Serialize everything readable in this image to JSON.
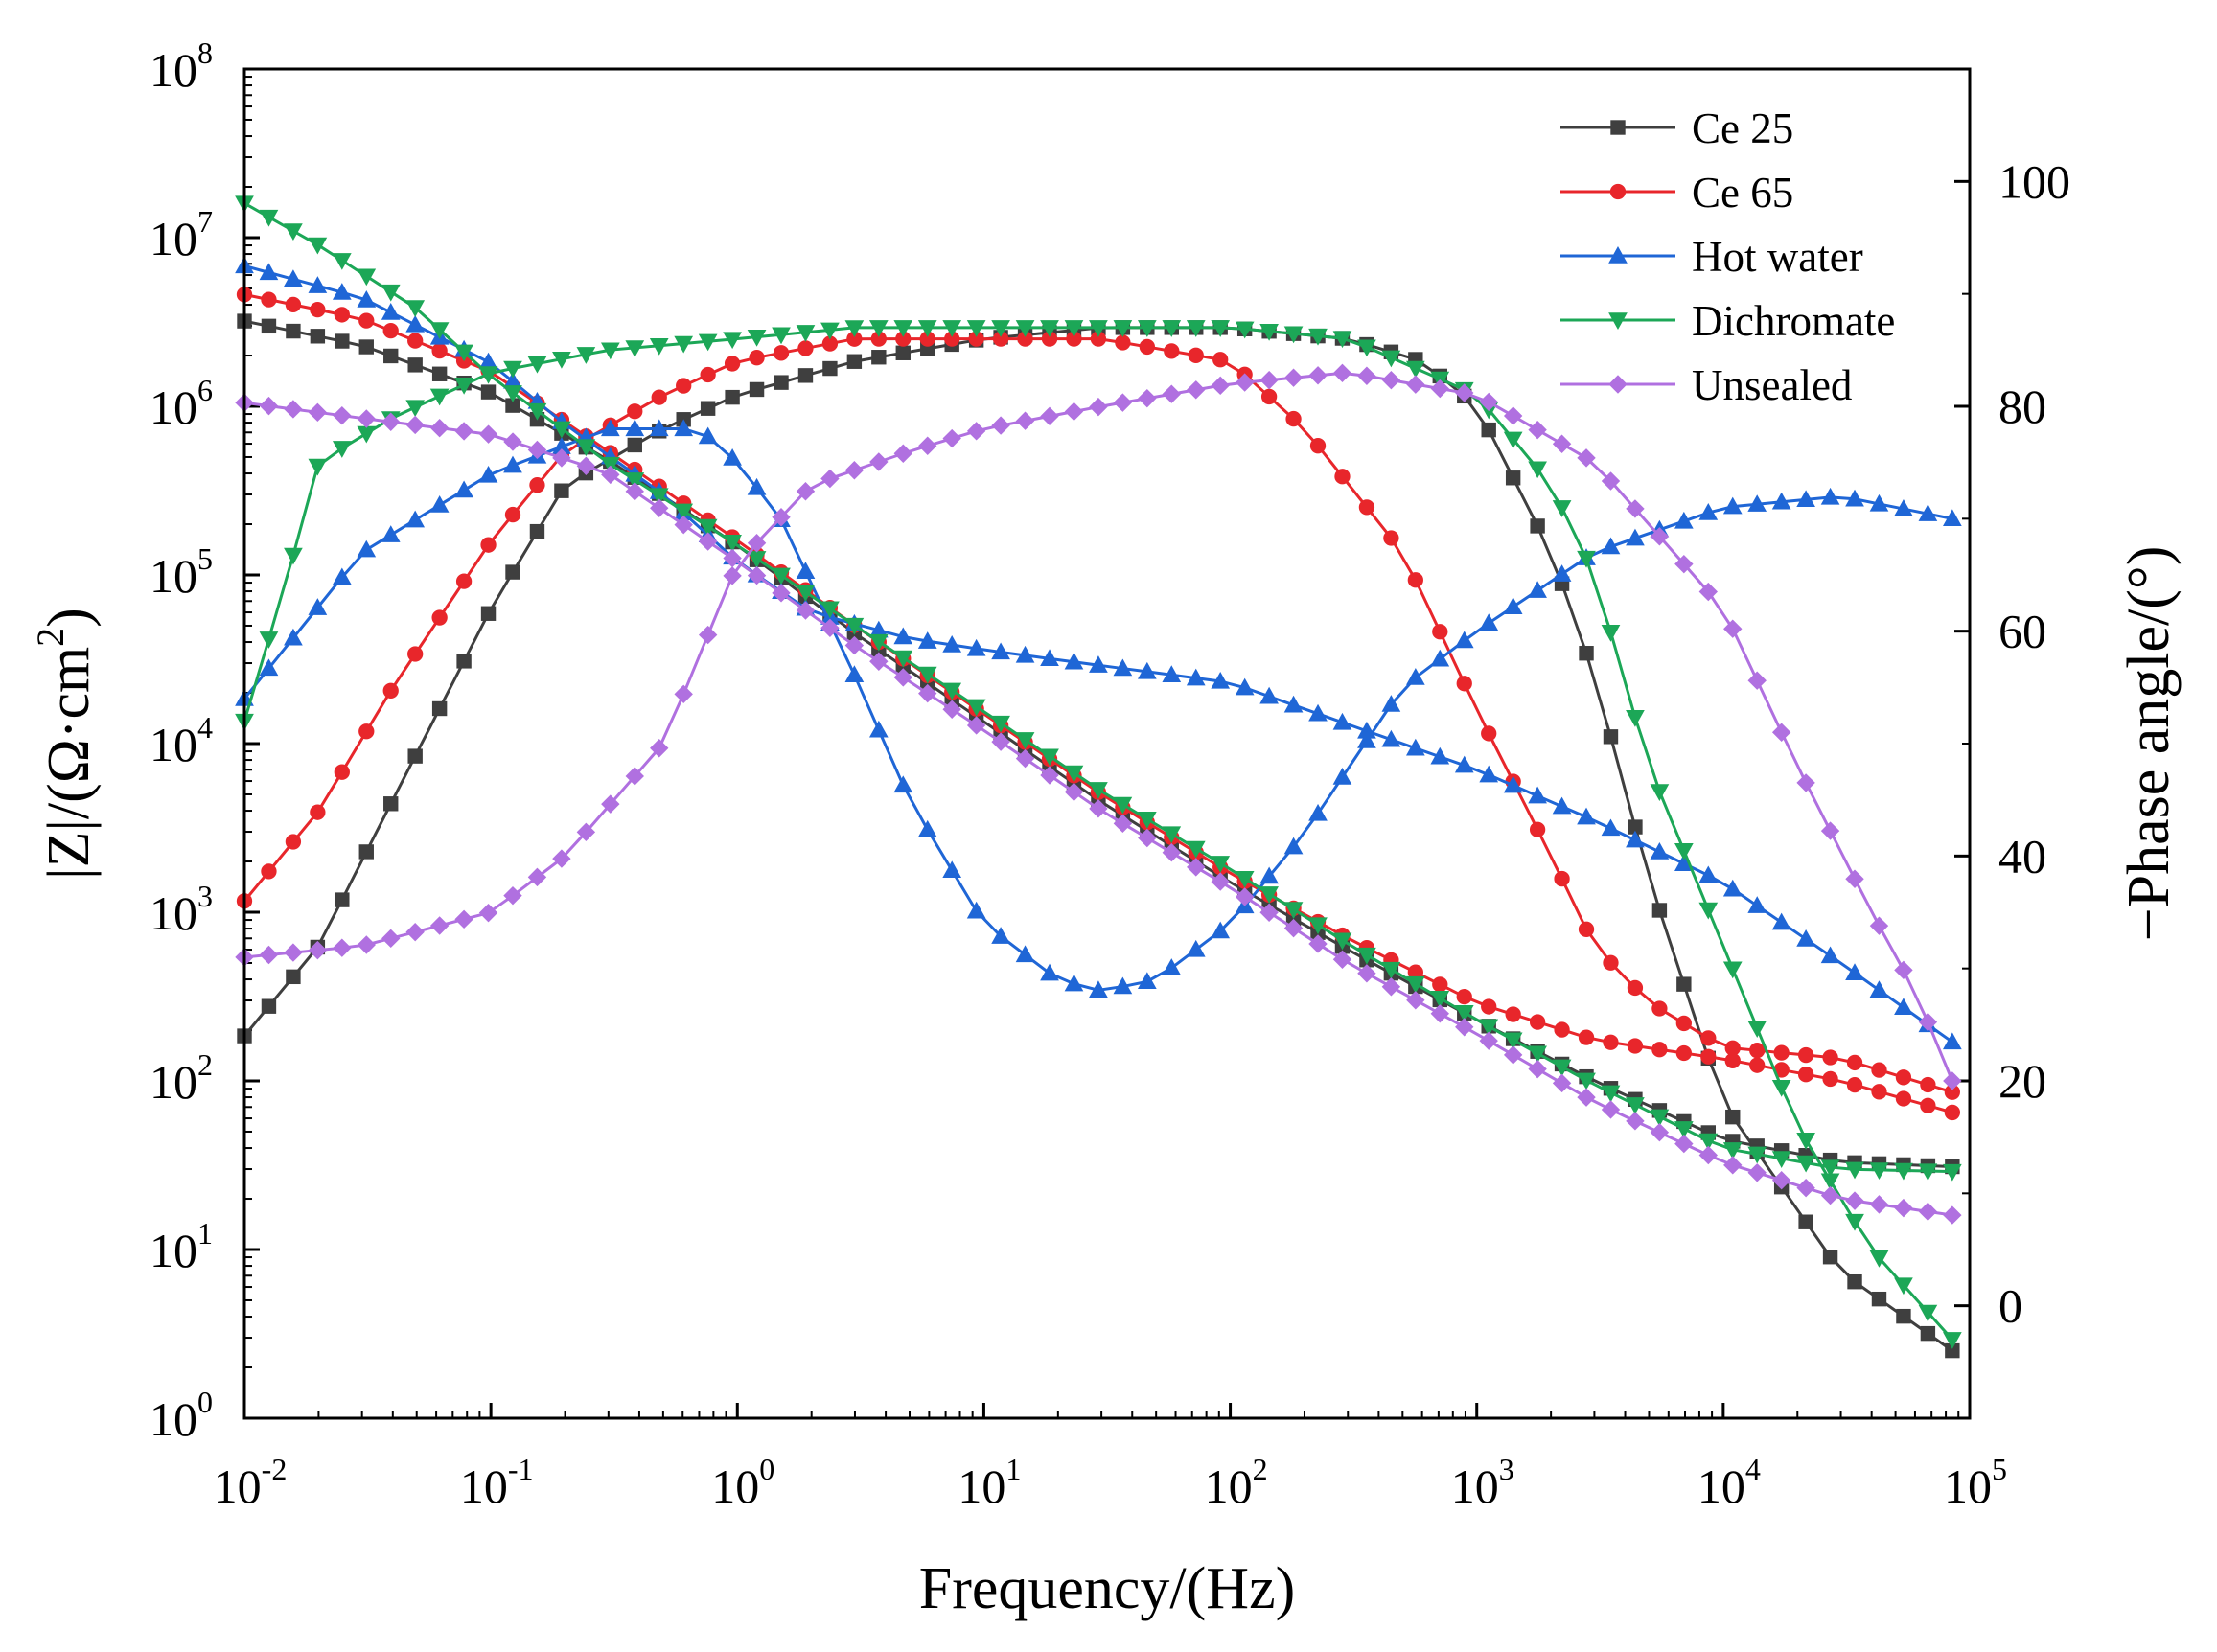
{
  "chart_data": {
    "type": "line",
    "xlabel": "Frequency/(Hz)",
    "ylabel_left": {
      "base": "|Z|/(Ω·cm",
      "sup": "2",
      "tail": ")"
    },
    "ylabel_right": "−Phase angle/(°)",
    "x_scale": "log",
    "xlim": [
      0.01,
      100000
    ],
    "x_ticks": [
      {
        "base": "10",
        "exp": "-2"
      },
      {
        "base": "10",
        "exp": "-1"
      },
      {
        "base": "10",
        "exp": "0"
      },
      {
        "base": "10",
        "exp": "1"
      },
      {
        "base": "10",
        "exp": "2"
      },
      {
        "base": "10",
        "exp": "3"
      },
      {
        "base": "10",
        "exp": "4"
      },
      {
        "base": "10",
        "exp": "5"
      }
    ],
    "y_left_scale": "log",
    "y_left_lim": [
      1,
      100000000
    ],
    "y_left_ticks": [
      {
        "base": "10",
        "exp": "0"
      },
      {
        "base": "10",
        "exp": "1"
      },
      {
        "base": "10",
        "exp": "2"
      },
      {
        "base": "10",
        "exp": "3"
      },
      {
        "base": "10",
        "exp": "4"
      },
      {
        "base": "10",
        "exp": "5"
      },
      {
        "base": "10",
        "exp": "6"
      },
      {
        "base": "10",
        "exp": "7"
      },
      {
        "base": "10",
        "exp": "8"
      }
    ],
    "y_right_lim": [
      -10,
      110
    ],
    "y_right_ticks": [
      "0",
      "20",
      "40",
      "60",
      "80",
      "100"
    ],
    "legend_position": "top-right",
    "series": [
      {
        "name": "Ce 25",
        "color": "#3f3f3f",
        "marker": "square",
        "impedance": [
          [
            0.01,
            3200000.0
          ],
          [
            0.03,
            2300000.0
          ],
          [
            0.1,
            1200000.0
          ],
          [
            0.3,
            480000.0
          ],
          [
            1,
            150000.0
          ],
          [
            3,
            45000.0
          ],
          [
            10,
            13500.0
          ],
          [
            30,
            4500.0
          ],
          [
            100,
            1500.0
          ],
          [
            300,
            600
          ],
          [
            1000,
            230
          ],
          [
            3000,
            100
          ],
          [
            10000,
            45
          ],
          [
            30000,
            33
          ],
          [
            85000,
            31
          ]
        ],
        "phase": [
          [
            0.01,
            24
          ],
          [
            0.02,
            32
          ],
          [
            0.04,
            45
          ],
          [
            0.1,
            62
          ],
          [
            0.2,
            73
          ],
          [
            0.5,
            78
          ],
          [
            1,
            81
          ],
          [
            3,
            84
          ],
          [
            10,
            86
          ],
          [
            30,
            87
          ],
          [
            100,
            87
          ],
          [
            300,
            86
          ],
          [
            600,
            84
          ],
          [
            1000,
            80
          ],
          [
            2000,
            67
          ],
          [
            3000,
            56
          ],
          [
            5000,
            38
          ],
          [
            10000,
            18
          ],
          [
            30000,
            3
          ],
          [
            85000,
            -4
          ]
        ]
      },
      {
        "name": "Ce 65",
        "color": "#e8262b",
        "marker": "circle",
        "impedance": [
          [
            0.01,
            4600000.0
          ],
          [
            0.03,
            3300000.0
          ],
          [
            0.1,
            1600000.0
          ],
          [
            0.3,
            540000.0
          ],
          [
            1,
            160000.0
          ],
          [
            3,
            50000.0
          ],
          [
            10,
            15000.0
          ],
          [
            30,
            5000.0
          ],
          [
            100,
            1700.0
          ],
          [
            300,
            700
          ],
          [
            1000,
            290
          ],
          [
            3000,
            175
          ],
          [
            10000,
            135
          ],
          [
            30000,
            100
          ],
          [
            85000,
            65
          ]
        ],
        "phase": [
          [
            0.01,
            36
          ],
          [
            0.02,
            44
          ],
          [
            0.04,
            55
          ],
          [
            0.1,
            68
          ],
          [
            0.2,
            76
          ],
          [
            0.5,
            81
          ],
          [
            1,
            84
          ],
          [
            3,
            86
          ],
          [
            10,
            86
          ],
          [
            30,
            86
          ],
          [
            100,
            84
          ],
          [
            200,
            78
          ],
          [
            500,
            67
          ],
          [
            1000,
            53
          ],
          [
            2000,
            40
          ],
          [
            3000,
            32
          ],
          [
            5000,
            27
          ],
          [
            10000,
            23
          ],
          [
            30000,
            22
          ],
          [
            85000,
            19
          ]
        ]
      },
      {
        "name": "Hot water",
        "color": "#1f66d6",
        "marker": "triangle-up",
        "impedance": [
          [
            0.01,
            6800000.0
          ],
          [
            0.03,
            4400000.0
          ],
          [
            0.1,
            1800000.0
          ],
          [
            0.2,
            780000.0
          ],
          [
            0.5,
            300000.0
          ],
          [
            1,
            120000.0
          ],
          [
            2,
            60000.0
          ],
          [
            5,
            42000.0
          ],
          [
            10,
            36000.0
          ],
          [
            30,
            29000.0
          ],
          [
            100,
            23000.0
          ],
          [
            300,
            13000.0
          ],
          [
            1000,
            7000.0
          ],
          [
            3000,
            3500.0
          ],
          [
            10000,
            1500.0
          ],
          [
            30000,
            500
          ],
          [
            85000,
            170
          ]
        ],
        "phase": [
          [
            0.01,
            54
          ],
          [
            0.03,
            67
          ],
          [
            0.1,
            74
          ],
          [
            0.3,
            78
          ],
          [
            0.7,
            78
          ],
          [
            1,
            75
          ],
          [
            1.5,
            70
          ],
          [
            3,
            56
          ],
          [
            5,
            45
          ],
          [
            10,
            34
          ],
          [
            20,
            29
          ],
          [
            30,
            28
          ],
          [
            50,
            29
          ],
          [
            100,
            34
          ],
          [
            200,
            42
          ],
          [
            500,
            55
          ],
          [
            1000,
            60
          ],
          [
            3000,
            67
          ],
          [
            10000,
            71
          ],
          [
            30000,
            72
          ],
          [
            85000,
            70
          ]
        ]
      },
      {
        "name": "Dichromate",
        "color": "#1ca757",
        "marker": "triangle-down",
        "impedance": [
          [
            0.01,
            16000000.0
          ],
          [
            0.02,
            9000000.0
          ],
          [
            0.05,
            3800000.0
          ],
          [
            0.1,
            1500000.0
          ],
          [
            0.3,
            460000.0
          ],
          [
            1,
            150000.0
          ],
          [
            3,
            50000.0
          ],
          [
            10,
            15500.0
          ],
          [
            30,
            5200.0
          ],
          [
            100,
            1800.0
          ],
          [
            300,
            650
          ],
          [
            1000,
            230
          ],
          [
            3000,
            95
          ],
          [
            10000,
            40
          ],
          [
            30000,
            30
          ],
          [
            85000,
            29
          ]
        ],
        "phase": [
          [
            0.01,
            52
          ],
          [
            0.015,
            65
          ],
          [
            0.02,
            75
          ],
          [
            0.04,
            79
          ],
          [
            0.1,
            83
          ],
          [
            0.3,
            85
          ],
          [
            1,
            86
          ],
          [
            3,
            87
          ],
          [
            10,
            87
          ],
          [
            30,
            87
          ],
          [
            100,
            87
          ],
          [
            300,
            86
          ],
          [
            1000,
            81
          ],
          [
            2000,
            73
          ],
          [
            3000,
            65
          ],
          [
            5000,
            48
          ],
          [
            10000,
            32
          ],
          [
            20000,
            16
          ],
          [
            40000,
            5
          ],
          [
            85000,
            -3
          ]
        ]
      },
      {
        "name": "Unsealed",
        "color": "#b070e0",
        "marker": "diamond",
        "impedance": [
          [
            0.01,
            1050000.0
          ],
          [
            0.03,
            850000.0
          ],
          [
            0.1,
            680000.0
          ],
          [
            0.3,
            400000.0
          ],
          [
            1,
            120000.0
          ],
          [
            3,
            38000.0
          ],
          [
            10,
            12000.0
          ],
          [
            30,
            4000.0
          ],
          [
            100,
            1400.0
          ],
          [
            300,
            500
          ],
          [
            1000,
            190
          ],
          [
            3000,
            75
          ],
          [
            10000,
            33
          ],
          [
            30000,
            20
          ],
          [
            85000,
            16
          ]
        ],
        "phase": [
          [
            0.01,
            31
          ],
          [
            0.03,
            32
          ],
          [
            0.1,
            35
          ],
          [
            0.2,
            40
          ],
          [
            0.5,
            50
          ],
          [
            1,
            66
          ],
          [
            2,
            73
          ],
          [
            5,
            76
          ],
          [
            10,
            78
          ],
          [
            30,
            80
          ],
          [
            100,
            82
          ],
          [
            300,
            83
          ],
          [
            1000,
            81
          ],
          [
            3000,
            75
          ],
          [
            10000,
            62
          ],
          [
            20000,
            48
          ],
          [
            40000,
            35
          ],
          [
            60000,
            28
          ],
          [
            85000,
            20
          ]
        ]
      }
    ]
  }
}
